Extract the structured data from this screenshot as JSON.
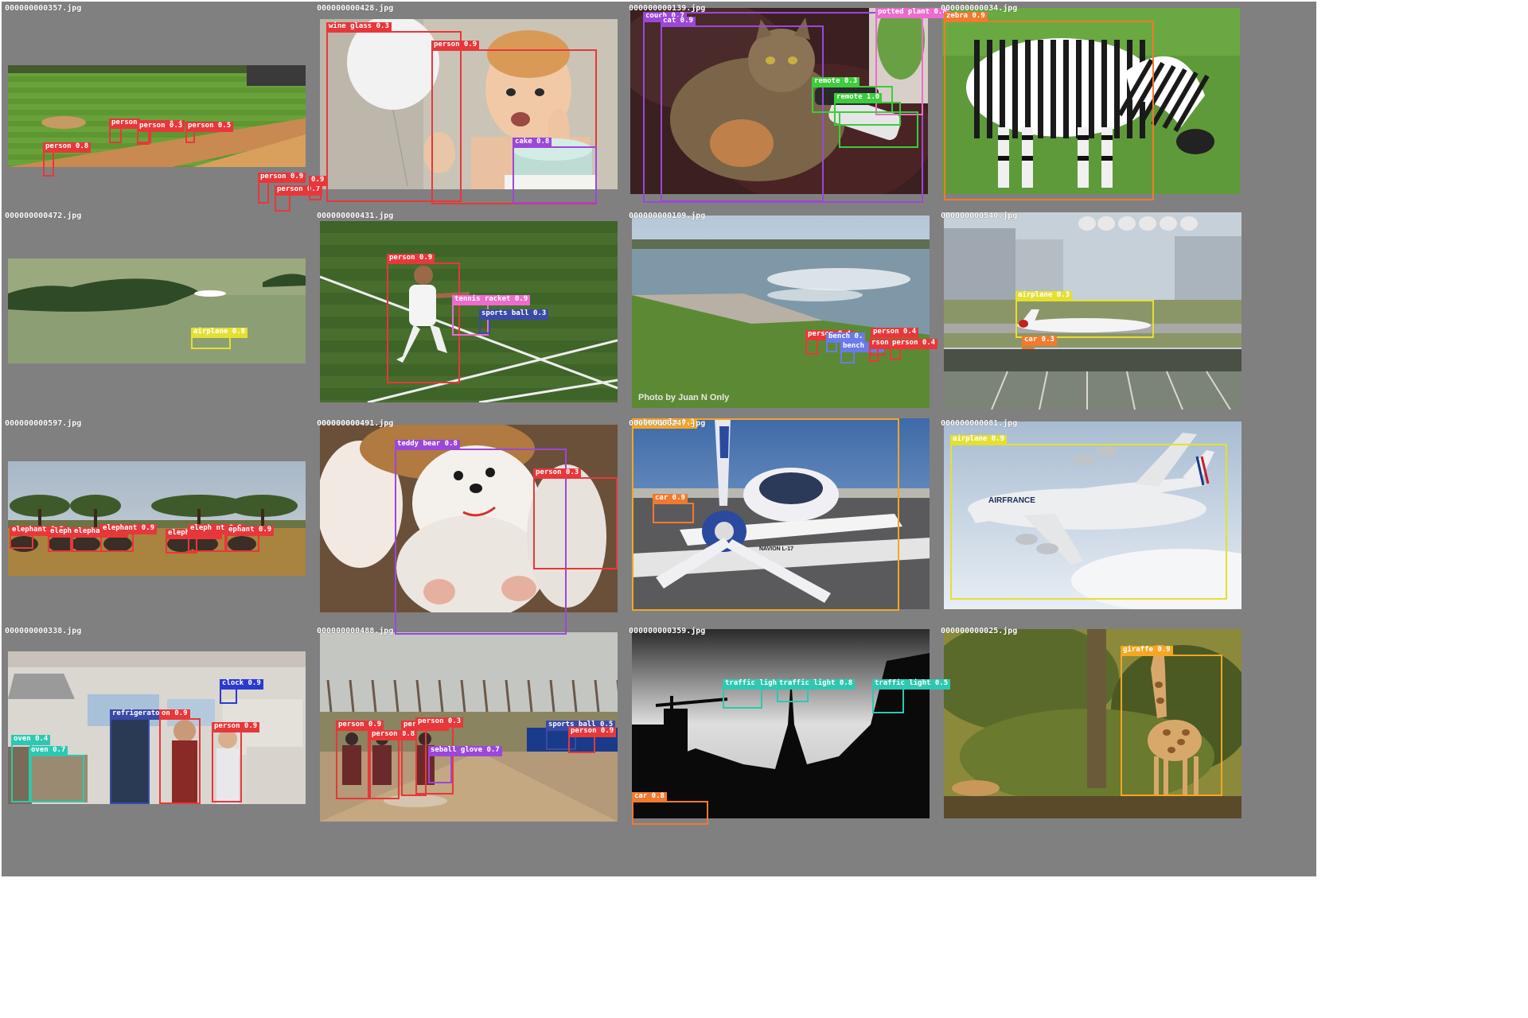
{
  "panels": [
    {
      "file": "000000000357.jpg",
      "scene": "baseball-field",
      "detections": [
        {
          "label": "person 0.8",
          "color": "#e8373a"
        },
        {
          "label": "person",
          "color": "#e8373a"
        },
        {
          "label": "person 0.4",
          "color": "#e8373a"
        },
        {
          "label": "person 0.3",
          "color": "#e8373a"
        },
        {
          "label": "person 0.5",
          "color": "#e8373a"
        },
        {
          "label": "person 0.9",
          "color": "#e8373a"
        },
        {
          "label": "person 0.7",
          "color": "#e8373a"
        },
        {
          "label": "0.9",
          "color": "#e8373a"
        }
      ]
    },
    {
      "file": "000000000428.jpg",
      "scene": "baby-cake",
      "detections": [
        {
          "label": "wine glass 0.3",
          "color": "#e8373a"
        },
        {
          "label": "person 0.9",
          "color": "#e8373a"
        },
        {
          "label": "cake 0.8",
          "color": "#9b48d8"
        }
      ]
    },
    {
      "file": "000000000139.jpg",
      "scene": "cat-couch",
      "detections": [
        {
          "label": "couch 0.7",
          "color": "#9b48d8"
        },
        {
          "label": "cat 0.9",
          "color": "#9b48d8"
        },
        {
          "label": "potted plant 0.8",
          "color": "#ec6cce"
        },
        {
          "label": "remote 0.3",
          "color": "#3ccc3c"
        },
        {
          "label": "remote 1.0",
          "color": "#3ccc3c"
        },
        {
          "label": "",
          "color": "#3ccc3c"
        }
      ]
    },
    {
      "file": "000000000034.jpg",
      "scene": "zebra",
      "detections": [
        {
          "label": "zebra 0.9",
          "color": "#f07a2e"
        }
      ]
    },
    {
      "file": "000000000472.jpg",
      "scene": "lake-airplane",
      "detections": [
        {
          "label": "airplane 0.8",
          "color": "#e4e032"
        }
      ]
    },
    {
      "file": "000000000431.jpg",
      "scene": "tennis",
      "detections": [
        {
          "label": "person 0.9",
          "color": "#e8373a"
        },
        {
          "label": "tennis racket 0.9",
          "color": "#ec6cce"
        },
        {
          "label": "sports ball 0.3",
          "color": "#3a4aa8"
        }
      ]
    },
    {
      "file": "000000000109.jpg",
      "scene": "river-park",
      "caption": "Photo by Juan N Only",
      "detections": [
        {
          "label": "person 0.4",
          "color": "#e8373a"
        },
        {
          "label": "person 0.4",
          "color": "#e8373a"
        },
        {
          "label": "bench 0.",
          "color": "#6a7ae8"
        },
        {
          "label": "bench 0.4",
          "color": "#6a7ae8"
        },
        {
          "label": "rson 0.6",
          "color": "#e8373a"
        },
        {
          "label": "person 0.4",
          "color": "#e8373a"
        }
      ]
    },
    {
      "file": "000000000540.jpg",
      "scene": "airport-jal",
      "detections": [
        {
          "label": "airplane 0.3",
          "color": "#e4e032"
        },
        {
          "label": "car 0.3",
          "color": "#f07a2e"
        }
      ]
    },
    {
      "file": "000000000597.jpg",
      "scene": "savanna-elephants",
      "detections": [
        {
          "label": "elephant 0.9",
          "color": "#e8373a"
        },
        {
          "label": "elephant 0.7",
          "color": "#e8373a"
        },
        {
          "label": "elephant 0.8",
          "color": "#e8373a"
        },
        {
          "label": "elephant 0.9",
          "color": "#e8373a"
        },
        {
          "label": "elephant 0.9",
          "color": "#e8373a"
        },
        {
          "label": "eleph nt 0.9",
          "color": "#e8373a"
        },
        {
          "label": "ephant 0.9",
          "color": "#e8373a"
        }
      ]
    },
    {
      "file": "000000000491.jpg",
      "scene": "teddy-bear",
      "detections": [
        {
          "label": "teddy bear 0.8",
          "color": "#9b48d8"
        },
        {
          "label": "person 0.3",
          "color": "#e8373a"
        }
      ]
    },
    {
      "file": "000000000247.jpg",
      "scene": "propeller-plane",
      "plane_text": "NAVION L-17",
      "detections": [
        {
          "label": "motorcycle 0.3",
          "color": "#f5a623"
        },
        {
          "label": "car 0.9",
          "color": "#f07a2e"
        }
      ]
    },
    {
      "file": "000000000081.jpg",
      "scene": "airfrance-a380",
      "plane_text": "AIRFRANCE",
      "detections": [
        {
          "label": "airplane 0.9",
          "color": "#e4e032"
        }
      ]
    },
    {
      "file": "000000000338.jpg",
      "scene": "kitchen",
      "detections": [
        {
          "label": "clock 0.9",
          "color": "#2a3ad0"
        },
        {
          "label": "refrigerator 0.9",
          "color": "#3a4aa8"
        },
        {
          "label": "on 0.9",
          "color": "#e8373a"
        },
        {
          "label": "person 0.9",
          "color": "#e8373a"
        },
        {
          "label": "oven 0.4",
          "color": "#2ec8b0"
        },
        {
          "label": "oven 0.7",
          "color": "#2ec8b0"
        }
      ]
    },
    {
      "file": "000000000488.jpg",
      "scene": "baseball-game",
      "detections": [
        {
          "label": "person 0.9",
          "color": "#e8373a"
        },
        {
          "label": "person 0.8",
          "color": "#e8373a"
        },
        {
          "label": "pers n 0.9",
          "color": "#e8373a"
        },
        {
          "label": "person 0.3",
          "color": "#e8373a"
        },
        {
          "label": "seball glove 0.7",
          "color": "#9b48d8"
        },
        {
          "label": "sports ball 0.5",
          "color": "#3a4aa8"
        },
        {
          "label": "person 0.9",
          "color": "#e8373a"
        }
      ]
    },
    {
      "file": "000000000359.jpg",
      "scene": "city-silhouette",
      "detections": [
        {
          "label": "traffic light 0.",
          "color": "#2ec8b0"
        },
        {
          "label": "traffic light 0.8",
          "color": "#2ec8b0"
        },
        {
          "label": "traffic light 0.5",
          "color": "#2ec8b0"
        },
        {
          "label": "car 0.8",
          "color": "#f07a2e"
        }
      ]
    },
    {
      "file": "000000000025.jpg",
      "scene": "giraffe",
      "detections": [
        {
          "label": "giraffe 0.9",
          "color": "#f5a623"
        }
      ]
    }
  ]
}
